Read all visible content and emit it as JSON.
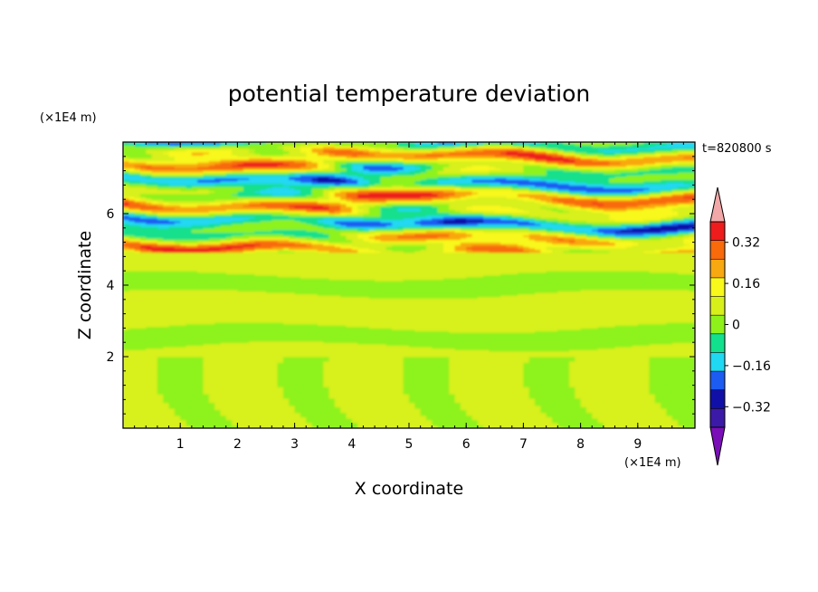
{
  "chart_data": {
    "type": "heatmap",
    "title": "potential temperature deviation",
    "xlabel": "X coordinate",
    "ylabel": "Z coordinate",
    "x_unit": "(×1E4 m)",
    "y_unit": "(×1E4 m)",
    "time_label": "t=820800 s",
    "xlim": [
      0,
      10
    ],
    "ylim": [
      0,
      8
    ],
    "x_ticks": [
      1,
      2,
      3,
      4,
      5,
      6,
      7,
      8,
      9
    ],
    "y_ticks": [
      2,
      4,
      6
    ],
    "colorbar": {
      "levels": [
        -0.48,
        -0.4,
        -0.32,
        -0.24,
        -0.16,
        -0.08,
        0,
        0.08,
        0.16,
        0.24,
        0.32,
        0.4,
        0.48
      ],
      "labels": [
        "0.32",
        "0.16",
        "0",
        "−0.16",
        "−0.32"
      ],
      "label_values": [
        0.32,
        0.16,
        0,
        -0.16,
        -0.32
      ],
      "colors": [
        "#7a0fb8",
        "#3c1aa8",
        "#1010a8",
        "#1c5cf2",
        "#20d8f2",
        "#12e08c",
        "#8ef21a",
        "#d8f01a",
        "#f8f81a",
        "#f8a810",
        "#f86a0a",
        "#ee1c1c",
        "#f2a8a8"
      ],
      "extend": "both"
    },
    "regions": {
      "stable_layer_top": 2.0,
      "turbulent_layer_bottom": 4.9
    }
  }
}
